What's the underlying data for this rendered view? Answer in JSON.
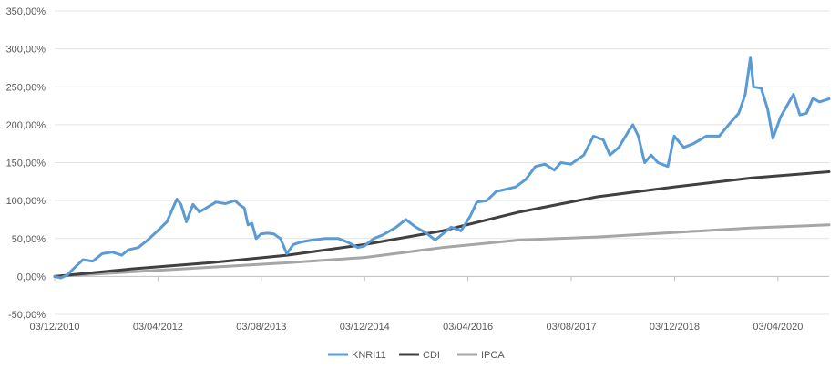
{
  "chart_data": {
    "type": "line",
    "title": "",
    "xlabel": "",
    "ylabel": "",
    "ylim": [
      -50,
      350
    ],
    "yticks": [
      -50,
      0,
      50,
      100,
      150,
      200,
      250,
      300,
      350
    ],
    "ytick_labels": [
      "-50,00%",
      "0,00%",
      "50,00%",
      "100,00%",
      "150,00%",
      "200,00%",
      "250,00%",
      "300,00%",
      "350,00%"
    ],
    "xlim": [
      "2010-12-03",
      "2020-11-30"
    ],
    "xticks": [
      "2010-12-03",
      "2012-04-03",
      "2013-08-03",
      "2014-12-03",
      "2016-04-03",
      "2017-08-03",
      "2018-12-03",
      "2020-04-03"
    ],
    "xtick_labels": [
      "03/12/2010",
      "03/04/2012",
      "03/08/2013",
      "03/12/2014",
      "03/04/2016",
      "03/08/2017",
      "03/12/2018",
      "03/04/2020"
    ],
    "grid": "horizontal",
    "legend_position": "bottom",
    "series": [
      {
        "name": "KNRI11",
        "color": "#5b9bd5",
        "points": [
          [
            "2010-12-03",
            0
          ],
          [
            "2011-01-01",
            -2
          ],
          [
            "2011-02-01",
            2
          ],
          [
            "2011-03-01",
            10
          ],
          [
            "2011-04-15",
            22
          ],
          [
            "2011-06-01",
            20
          ],
          [
            "2011-07-15",
            30
          ],
          [
            "2011-09-01",
            32
          ],
          [
            "2011-10-15",
            28
          ],
          [
            "2011-11-15",
            35
          ],
          [
            "2012-01-01",
            38
          ],
          [
            "2012-02-15",
            48
          ],
          [
            "2012-04-01",
            60
          ],
          [
            "2012-05-15",
            72
          ],
          [
            "2012-07-01",
            102
          ],
          [
            "2012-07-20",
            95
          ],
          [
            "2012-08-15",
            72
          ],
          [
            "2012-09-15",
            95
          ],
          [
            "2012-10-15",
            85
          ],
          [
            "2012-11-15",
            90
          ],
          [
            "2013-01-01",
            98
          ],
          [
            "2013-02-15",
            96
          ],
          [
            "2013-04-01",
            100
          ],
          [
            "2013-04-20",
            95
          ],
          [
            "2013-05-15",
            90
          ],
          [
            "2013-06-01",
            68
          ],
          [
            "2013-06-20",
            70
          ],
          [
            "2013-07-10",
            50
          ],
          [
            "2013-08-01",
            56
          ],
          [
            "2013-09-01",
            57
          ],
          [
            "2013-10-01",
            56
          ],
          [
            "2013-11-01",
            50
          ],
          [
            "2013-12-01",
            30
          ],
          [
            "2014-01-01",
            42
          ],
          [
            "2014-02-01",
            45
          ],
          [
            "2014-04-01",
            48
          ],
          [
            "2014-06-01",
            50
          ],
          [
            "2014-08-01",
            50
          ],
          [
            "2014-09-15",
            45
          ],
          [
            "2014-11-01",
            38
          ],
          [
            "2014-12-01",
            40
          ],
          [
            "2015-01-15",
            50
          ],
          [
            "2015-03-01",
            55
          ],
          [
            "2015-05-01",
            65
          ],
          [
            "2015-06-15",
            75
          ],
          [
            "2015-08-01",
            65
          ],
          [
            "2015-09-15",
            58
          ],
          [
            "2015-11-01",
            48
          ],
          [
            "2015-12-01",
            55
          ],
          [
            "2016-01-15",
            65
          ],
          [
            "2016-03-01",
            60
          ],
          [
            "2016-04-15",
            80
          ],
          [
            "2016-05-15",
            98
          ],
          [
            "2016-07-01",
            100
          ],
          [
            "2016-08-15",
            112
          ],
          [
            "2016-10-01",
            115
          ],
          [
            "2016-11-15",
            118
          ],
          [
            "2017-01-01",
            128
          ],
          [
            "2017-02-15",
            145
          ],
          [
            "2017-04-01",
            148
          ],
          [
            "2017-05-15",
            140
          ],
          [
            "2017-06-15",
            150
          ],
          [
            "2017-08-01",
            148
          ],
          [
            "2017-10-01",
            160
          ],
          [
            "2017-11-15",
            185
          ],
          [
            "2018-01-01",
            180
          ],
          [
            "2018-02-01",
            160
          ],
          [
            "2018-03-15",
            170
          ],
          [
            "2018-05-01",
            192
          ],
          [
            "2018-05-20",
            200
          ],
          [
            "2018-06-15",
            185
          ],
          [
            "2018-07-15",
            150
          ],
          [
            "2018-08-15",
            160
          ],
          [
            "2018-09-15",
            150
          ],
          [
            "2018-11-01",
            145
          ],
          [
            "2018-12-01",
            185
          ],
          [
            "2019-01-15",
            170
          ],
          [
            "2019-03-01",
            175
          ],
          [
            "2019-05-01",
            185
          ],
          [
            "2019-07-01",
            185
          ],
          [
            "2019-08-15",
            200
          ],
          [
            "2019-10-01",
            215
          ],
          [
            "2019-11-01",
            240
          ],
          [
            "2019-11-25",
            288
          ],
          [
            "2019-12-10",
            250
          ],
          [
            "2020-01-15",
            248
          ],
          [
            "2020-02-15",
            220
          ],
          [
            "2020-03-10",
            182
          ],
          [
            "2020-04-15",
            210
          ],
          [
            "2020-05-15",
            225
          ],
          [
            "2020-06-15",
            240
          ],
          [
            "2020-07-15",
            213
          ],
          [
            "2020-08-15",
            215
          ],
          [
            "2020-09-15",
            235
          ],
          [
            "2020-10-15",
            230
          ],
          [
            "2020-11-30",
            234
          ]
        ]
      },
      {
        "name": "CDI",
        "color": "#404040",
        "points": [
          [
            "2010-12-03",
            0
          ],
          [
            "2011-12-03",
            10
          ],
          [
            "2012-12-03",
            18
          ],
          [
            "2013-12-03",
            28
          ],
          [
            "2014-12-03",
            42
          ],
          [
            "2015-12-03",
            60
          ],
          [
            "2016-12-03",
            85
          ],
          [
            "2017-12-03",
            105
          ],
          [
            "2018-12-03",
            118
          ],
          [
            "2019-12-03",
            130
          ],
          [
            "2020-11-30",
            138
          ]
        ]
      },
      {
        "name": "IPCA",
        "color": "#a6a6a6",
        "points": [
          [
            "2010-12-03",
            0
          ],
          [
            "2011-12-03",
            6
          ],
          [
            "2012-12-03",
            12
          ],
          [
            "2013-12-03",
            18
          ],
          [
            "2014-12-03",
            25
          ],
          [
            "2015-12-03",
            38
          ],
          [
            "2016-12-03",
            48
          ],
          [
            "2017-12-03",
            52
          ],
          [
            "2018-12-03",
            58
          ],
          [
            "2019-12-03",
            64
          ],
          [
            "2020-11-30",
            68
          ]
        ]
      }
    ]
  }
}
